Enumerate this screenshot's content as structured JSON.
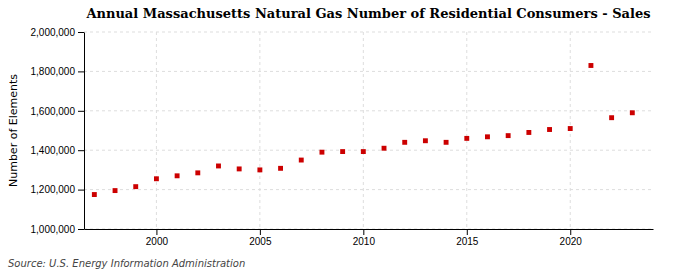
{
  "chart_data": {
    "type": "scatter",
    "title": "Annual Massachusetts Natural Gas Number of Residential Consumers - Sales",
    "ylabel": "Number of Elements",
    "annotations": [
      "Source: U.S. Energy Information Administration"
    ],
    "x": [
      1997,
      1998,
      1999,
      2000,
      2001,
      2002,
      2003,
      2004,
      2005,
      2006,
      2007,
      2008,
      2009,
      2010,
      2011,
      2012,
      2013,
      2014,
      2015,
      2016,
      2017,
      2018,
      2019,
      2020,
      2021,
      2022,
      2023
    ],
    "values": [
      1175000,
      1195000,
      1215000,
      1255000,
      1270000,
      1285000,
      1320000,
      1305000,
      1300000,
      1308000,
      1350000,
      1390000,
      1393000,
      1393000,
      1410000,
      1440000,
      1448000,
      1440000,
      1460000,
      1468000,
      1474000,
      1490000,
      1505000,
      1510000,
      1830000,
      1565000,
      1590000
    ],
    "color": "#cc0000",
    "marker": "square",
    "xlim": [
      1996.5,
      2024
    ],
    "xticks": [
      2000,
      2005,
      2010,
      2015,
      2020
    ],
    "ylim": [
      1000000,
      2000000
    ],
    "yticks": [
      {
        "value": 1000000,
        "label": "1,000,000"
      },
      {
        "value": 1200000,
        "label": "1,200,000"
      },
      {
        "value": 1400000,
        "label": "1,400,000"
      },
      {
        "value": 1600000,
        "label": "1,600,000"
      },
      {
        "value": 1800000,
        "label": "1,800,000"
      },
      {
        "value": 2000000,
        "label": "2,000,000"
      }
    ],
    "grid": true
  }
}
